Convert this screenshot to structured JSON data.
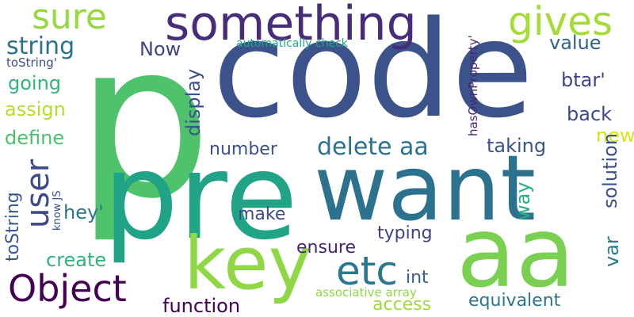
{
  "words": [
    {
      "text": "p",
      "color": "#4ec36b"
    },
    {
      "text": "code",
      "color": "#3b528b"
    },
    {
      "text": "pre",
      "color": "#20a386"
    },
    {
      "text": "want",
      "color": "#2c728e"
    },
    {
      "text": "aa",
      "color": "#7ad151"
    },
    {
      "text": "key",
      "color": "#8fd744"
    },
    {
      "text": "something",
      "color": "#472c7a"
    },
    {
      "text": "Object",
      "color": "#440154"
    },
    {
      "text": "etc",
      "color": "#2a788e"
    },
    {
      "text": "sure",
      "color": "#95d840"
    },
    {
      "text": "gives",
      "color": "#a5db36"
    },
    {
      "text": "user",
      "color": "#3e4a89"
    },
    {
      "text": "string",
      "color": "#2d708e"
    },
    {
      "text": "delete aa",
      "color": "#2c728e"
    },
    {
      "text": "Now",
      "color": "#414487"
    },
    {
      "text": "value",
      "color": "#33638d"
    },
    {
      "text": "going",
      "color": "#31b57b"
    },
    {
      "text": "assign",
      "color": "#b5de2b"
    },
    {
      "text": "define",
      "color": "#4ac16d"
    },
    {
      "text": "display",
      "color": "#3b518b"
    },
    {
      "text": "number",
      "color": "#3b528b"
    },
    {
      "text": "taking",
      "color": "#3b528b"
    },
    {
      "text": "btar'",
      "color": "#404688"
    },
    {
      "text": "back",
      "color": "#3e4989"
    },
    {
      "text": "new",
      "color": "#d8e219"
    },
    {
      "text": "solution",
      "color": "#3b528b"
    },
    {
      "text": "hey'",
      "color": "#2a768e"
    },
    {
      "text": "make",
      "color": "#3e4a89"
    },
    {
      "text": "way",
      "color": "#26ad81"
    },
    {
      "text": "var",
      "color": "#287d8e"
    },
    {
      "text": "create",
      "color": "#2eb37c"
    },
    {
      "text": "typing",
      "color": "#404387"
    },
    {
      "text": "ensure",
      "color": "#482374"
    },
    {
      "text": "toString",
      "color": "#38598c"
    },
    {
      "text": "int",
      "color": "#34618d"
    },
    {
      "text": "function",
      "color": "#440154"
    },
    {
      "text": "access",
      "color": "#a0da39"
    },
    {
      "text": "equivalent",
      "color": "#2a768e"
    },
    {
      "text": "associative array",
      "color": "#8ed645"
    },
    {
      "text": "hasOwnProperty'",
      "color": "#472878"
    },
    {
      "text": "automatically check",
      "color": "#21a585"
    },
    {
      "text": "toString'",
      "color": "#3d4d8a"
    },
    {
      "text": "know JS",
      "color": "#3d4e8a"
    }
  ]
}
